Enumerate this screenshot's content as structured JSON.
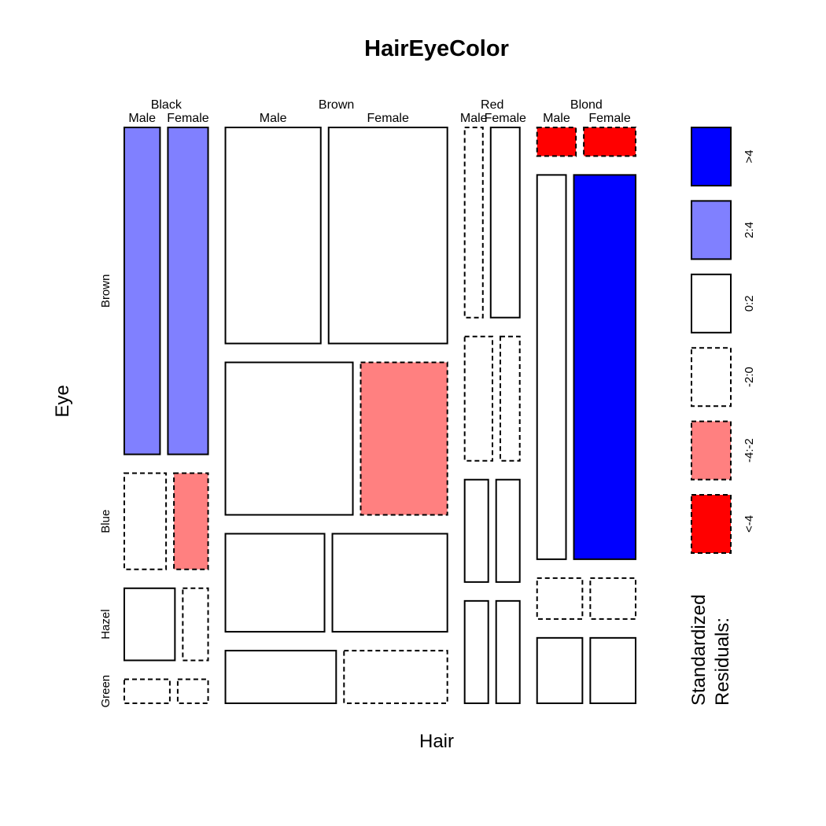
{
  "chart_data": {
    "type": "mosaic",
    "title": "HairEyeColor",
    "xlabel": "Hair",
    "ylabel": "Eye",
    "hair_levels": [
      "Black",
      "Brown",
      "Red",
      "Blond"
    ],
    "sex_levels": [
      "Male",
      "Female"
    ],
    "eye_levels": [
      "Brown",
      "Blue",
      "Hazel",
      "Green"
    ],
    "counts": {
      "Black": {
        "Male": {
          "Brown": 32,
          "Blue": 11,
          "Hazel": 10,
          "Green": 3
        },
        "Female": {
          "Brown": 36,
          "Blue": 9,
          "Hazel": 5,
          "Green": 2
        }
      },
      "Brown": {
        "Male": {
          "Brown": 53,
          "Blue": 50,
          "Hazel": 25,
          "Green": 15
        },
        "Female": {
          "Brown": 66,
          "Blue": 34,
          "Hazel": 29,
          "Green": 14
        }
      },
      "Red": {
        "Male": {
          "Brown": 10,
          "Blue": 10,
          "Hazel": 7,
          "Green": 7
        },
        "Female": {
          "Brown": 16,
          "Blue": 7,
          "Hazel": 7,
          "Green": 7
        }
      },
      "Blond": {
        "Male": {
          "Brown": 3,
          "Blue": 30,
          "Hazel": 5,
          "Green": 8
        },
        "Female": {
          "Brown": 4,
          "Blue": 64,
          "Hazel": 5,
          "Green": 8
        }
      }
    },
    "residual_class": {
      "Black": {
        "Male": {
          "Brown": "2:4",
          "Blue": "-2:0",
          "Hazel": "0:2",
          "Green": "-2:0"
        },
        "Female": {
          "Brown": "2:4",
          "Blue": "-4:-2",
          "Hazel": "-2:0",
          "Green": "-2:0"
        }
      },
      "Brown": {
        "Male": {
          "Brown": "0:2",
          "Blue": "0:2",
          "Hazel": "0:2",
          "Green": "0:2"
        },
        "Female": {
          "Brown": "0:2",
          "Blue": "-4:-2",
          "Hazel": "0:2",
          "Green": "-2:0"
        }
      },
      "Red": {
        "Male": {
          "Brown": "-2:0",
          "Blue": "-2:0",
          "Hazel": "0:2",
          "Green": "0:2"
        },
        "Female": {
          "Brown": "0:2",
          "Blue": "-2:0",
          "Hazel": "0:2",
          "Green": "0:2"
        }
      },
      "Blond": {
        "Male": {
          "Brown": "<-4",
          "Blue": "0:2",
          "Hazel": "-2:0",
          "Green": "0:2"
        },
        "Female": {
          "Brown": "<-4",
          "Blue": ">4",
          "Hazel": "-2:0",
          "Green": "0:2"
        }
      }
    },
    "legend": {
      "title_lines": [
        "Standardized",
        "Residuals:"
      ],
      "classes": [
        {
          "label": ">4",
          "color": "#0000ff",
          "dashed": false
        },
        {
          "label": "2:4",
          "color": "#8080ff",
          "dashed": false
        },
        {
          "label": "0:2",
          "color": "#ffffff",
          "dashed": false
        },
        {
          "label": "-2:0",
          "color": "#ffffff",
          "dashed": true
        },
        {
          "label": "-4:-2",
          "color": "#ff8080",
          "dashed": true
        },
        {
          "label": "<-4",
          "color": "#ff0000",
          "dashed": true
        }
      ]
    }
  }
}
